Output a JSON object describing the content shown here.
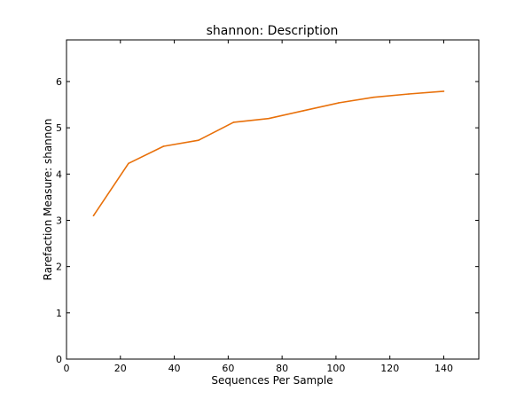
{
  "chart_data": {
    "type": "line",
    "title": "shannon: Description",
    "xlabel": "Sequences Per Sample",
    "ylabel": "Rarefaction Measure: shannon",
    "xlim": [
      0,
      153
    ],
    "ylim": [
      0,
      6.9
    ],
    "x_ticks": [
      0,
      20,
      40,
      60,
      80,
      100,
      120,
      140
    ],
    "y_ticks": [
      0,
      1,
      2,
      3,
      4,
      5,
      6
    ],
    "grid": false,
    "series": [
      {
        "color": "#e8700a",
        "x": [
          10,
          23,
          36,
          49,
          62,
          75,
          88,
          101,
          114,
          127,
          140
        ],
        "y": [
          3.1,
          4.23,
          4.6,
          4.73,
          5.12,
          5.2,
          5.37,
          5.54,
          5.66,
          5.73,
          5.79
        ]
      }
    ]
  }
}
